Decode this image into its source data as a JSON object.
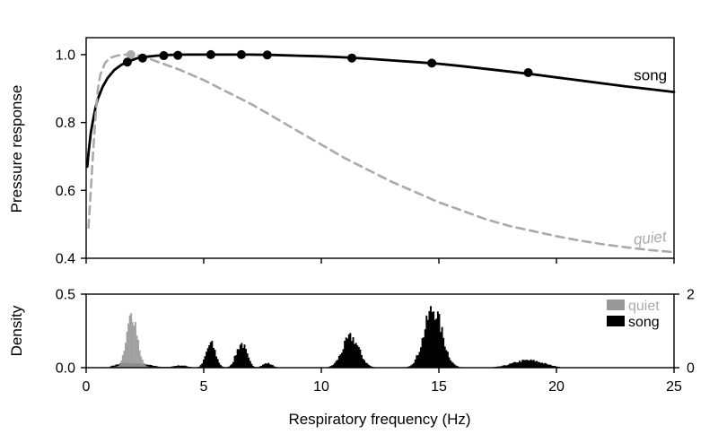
{
  "colors": {
    "song": "#000000",
    "quiet_curve": "#aaaaaa",
    "quiet_label": "#aaaaaa",
    "quiet_hist": "#999999",
    "song_hist": "#000000",
    "axis": "#000000"
  },
  "chart_data": [
    {
      "type": "line",
      "ylabel": "Pressure response",
      "xlim": [
        0,
        25
      ],
      "ylim": [
        0.4,
        1.05
      ],
      "xticks": [
        0,
        5,
        10,
        15,
        20,
        25
      ],
      "yticks": [
        0.4,
        0.6,
        0.8,
        1.0
      ],
      "ytick_labels": [
        "0.4",
        "0.6",
        "0.8",
        "1.0"
      ],
      "grid": false,
      "series": [
        {
          "name": "song",
          "style": "solid",
          "x": [
            0.05,
            0.1,
            0.2,
            0.3,
            0.4,
            0.5,
            0.7,
            0.9,
            1.2,
            1.5,
            1.8,
            2.2,
            2.6,
            3.0,
            3.5,
            4.0,
            5.0,
            6.0,
            7.0,
            8.0,
            9.0,
            10.0,
            11.0,
            12.0,
            13.0,
            14.0,
            15.0,
            16.0,
            17.0,
            18.0,
            19.0,
            20.0,
            21.0,
            22.0,
            23.0,
            24.0,
            25.0
          ],
          "y": [
            0.67,
            0.71,
            0.77,
            0.81,
            0.845,
            0.87,
            0.905,
            0.93,
            0.955,
            0.97,
            0.98,
            0.99,
            0.994,
            0.997,
            0.999,
            1.0,
            1.0,
            1.0,
            1.0,
            0.999,
            0.997,
            0.995,
            0.992,
            0.988,
            0.983,
            0.978,
            0.973,
            0.966,
            0.958,
            0.95,
            0.942,
            0.933,
            0.924,
            0.915,
            0.906,
            0.898,
            0.89
          ]
        },
        {
          "name": "quiet",
          "style": "dashed",
          "x": [
            0.1,
            0.2,
            0.3,
            0.4,
            0.5,
            0.6,
            0.8,
            1.0,
            1.3,
            1.6,
            1.9,
            2.2,
            2.6,
            3.0,
            4.0,
            5.0,
            6.0,
            7.0,
            8.0,
            9.0,
            10.0,
            11.0,
            12.0,
            13.0,
            14.0,
            15.0,
            16.0,
            17.0,
            18.0,
            19.0,
            20.0,
            21.0,
            22.0,
            23.0,
            24.0,
            25.0
          ],
          "y": [
            0.49,
            0.6,
            0.72,
            0.82,
            0.9,
            0.94,
            0.975,
            0.99,
            0.997,
            1.0,
            1.0,
            0.998,
            0.99,
            0.98,
            0.955,
            0.925,
            0.89,
            0.855,
            0.815,
            0.775,
            0.735,
            0.695,
            0.66,
            0.625,
            0.595,
            0.565,
            0.54,
            0.515,
            0.495,
            0.48,
            0.465,
            0.452,
            0.441,
            0.432,
            0.424,
            0.418
          ]
        }
      ],
      "points": {
        "song": {
          "x": [
            1.75,
            2.4,
            3.3,
            3.9,
            5.3,
            6.6,
            7.7,
            11.3,
            14.7,
            18.8
          ],
          "y": [
            0.978,
            0.99,
            0.997,
            0.998,
            1.0,
            1.0,
            0.999,
            0.99,
            0.975,
            0.947
          ]
        },
        "quiet": {
          "x": [
            1.9
          ],
          "y": [
            1.0
          ]
        }
      },
      "annotations": [
        {
          "text": "song",
          "series": "song",
          "x": 24.7,
          "y": 0.925,
          "italic": false
        },
        {
          "text": "quiet",
          "series": "quiet",
          "x": 24.7,
          "y": 0.45,
          "italic": true
        }
      ]
    },
    {
      "type": "bar",
      "xlabel": "Respiratory frequency (Hz)",
      "ylabel": "Density",
      "xlim": [
        0,
        25
      ],
      "ylim": [
        0,
        0.5
      ],
      "xticks": [
        0,
        5,
        10,
        15,
        20,
        25
      ],
      "xtick_labels": [
        "0",
        "5",
        "10",
        "15",
        "20",
        "25"
      ],
      "yticks": [
        0,
        0.5
      ],
      "ytick_labels": [
        "0.0",
        "0.5"
      ],
      "right_axis": {
        "ylim": [
          0,
          2
        ],
        "yticks": [
          0,
          2
        ],
        "ytick_labels": [
          "0",
          "2"
        ]
      },
      "legend": {
        "placement": "top-right",
        "entries": [
          "quiet",
          "song"
        ]
      },
      "series": [
        {
          "name": "quiet",
          "axis": "left",
          "peaks": [
            {
              "center": 1.95,
              "width": 0.22,
              "height": 0.36
            }
          ],
          "baseline": 0.004,
          "range": [
            0.5,
            4.0
          ]
        },
        {
          "name": "song",
          "axis": "right",
          "peaks": [
            {
              "center": 1.6,
              "width": 0.4,
              "height": 0.1
            },
            {
              "center": 2.4,
              "width": 0.5,
              "height": 0.08
            },
            {
              "center": 4.0,
              "width": 0.3,
              "height": 0.06
            },
            {
              "center": 5.3,
              "width": 0.2,
              "height": 0.65
            },
            {
              "center": 6.6,
              "width": 0.22,
              "height": 0.65
            },
            {
              "center": 7.7,
              "width": 0.2,
              "height": 0.12
            },
            {
              "center": 11.25,
              "width": 0.35,
              "height": 0.82
            },
            {
              "center": 14.75,
              "width": 0.38,
              "height": 1.58
            },
            {
              "center": 18.8,
              "width": 0.65,
              "height": 0.2
            }
          ],
          "baseline": 0.0,
          "range": [
            1.0,
            20.1
          ]
        }
      ]
    }
  ]
}
